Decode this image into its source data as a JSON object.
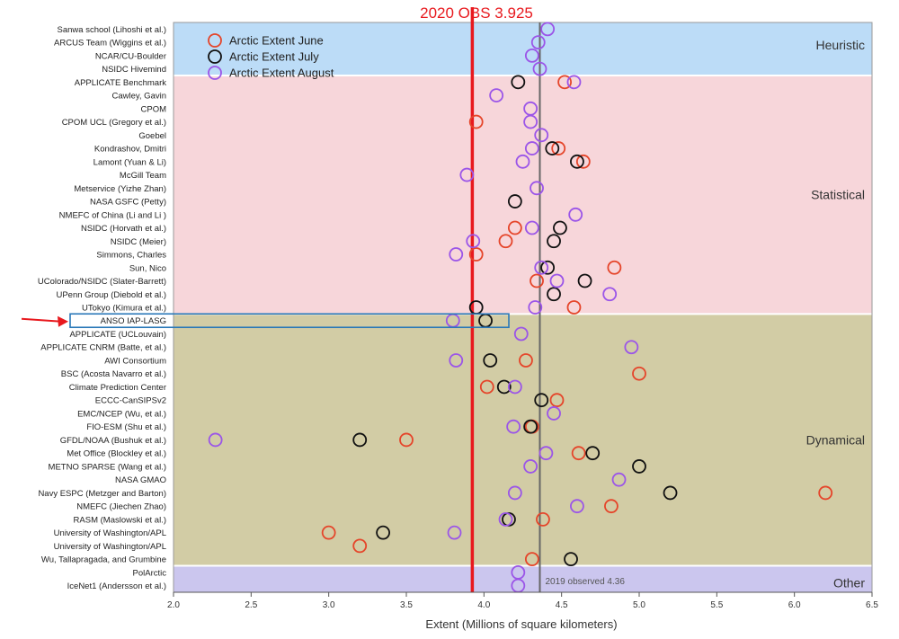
{
  "chart_data": {
    "type": "scatter",
    "title": "2020 OBS 3.925",
    "xlabel": "Extent (Millions of square kilometers)",
    "ylabel": "",
    "xlim": [
      2.0,
      6.5
    ],
    "xticks": [
      "2.0",
      "2.5",
      "3.0",
      "3.5",
      "4.0",
      "4.5",
      "5.0",
      "5.5",
      "6.0",
      "6.5"
    ],
    "grid": false,
    "legend_position": "top-left",
    "colors": {
      "june": "#e5452a",
      "july": "#111111",
      "august": "#9b55e8",
      "obs2020": "#e8191e",
      "obs2019": "#666666"
    },
    "reference_lines": [
      {
        "name": "2020 OBS",
        "value": 3.925,
        "label": "2020 OBS 3.925"
      },
      {
        "name": "2019 observed",
        "value": 4.36,
        "label": "2019 observed 4.36"
      }
    ],
    "groups": [
      {
        "name": "Heuristic",
        "from": "Sanwa school (Lihoshi et al.)",
        "to": "NSIDC Hivemind",
        "color": "#bcdcf7"
      },
      {
        "name": "Statistical",
        "from": "APPLICATE Benchmark",
        "to": "UTokyo (Kimura et al.)",
        "color": "#f7d6da"
      },
      {
        "name": "Dynamical",
        "from": "ANSO IAP-LASG",
        "to": "Wu, Tallapragada, and Grumbine",
        "color": "#d2cca5"
      },
      {
        "name": "Other",
        "from": "PolArctic",
        "to": "IceNet1 (Andersson et al.)",
        "color": "#cbc6ee"
      }
    ],
    "highlight": "ANSO IAP-LASG",
    "categories": [
      "Sanwa school (Lihoshi et al.)",
      "ARCUS Team (Wiggins et al.)",
      "NCAR/CU-Boulder",
      "NSIDC Hivemind",
      "APPLICATE Benchmark",
      "Cawley, Gavin",
      "CPOM",
      "CPOM UCL (Gregory et al.)",
      "Goebel",
      "Kondrashov, Dmitri",
      "Lamont (Yuan & Li)",
      "McGill Team",
      "Metservice (Yizhe Zhan)",
      "NASA GSFC (Petty)",
      "NMEFC of China (Li and Li )",
      "NSIDC (Horvath et al.)",
      "NSIDC (Meier)",
      "Simmons, Charles",
      "Sun, Nico",
      "UColorado/NSIDC (Slater-Barrett)",
      "UPenn Group (Diebold et al.)",
      "UTokyo (Kimura et al.)",
      "ANSO IAP-LASG",
      "APPLICATE (UCLouvain)",
      "APPLICATE CNRM (Batte, et al.)",
      "AWI Consortium",
      "BSC (Acosta Navarro et al.)",
      "Climate Prediction Center",
      "ECCC-CanSIPSv2",
      "EMC/NCEP (Wu, et al.)",
      "FIO-ESM (Shu et al.)",
      "GFDL/NOAA (Bushuk et al.)",
      "Met Office (Blockley et al.)",
      "METNO SPARSE (Wang et al.)",
      "NASA GMAO",
      "Navy ESPC (Metzger and Barton)",
      "NMEFC (Jiechen Zhao)",
      "RASM (Maslowski et al.)",
      "University of Washington/APL",
      "University of Washington/APL",
      "Wu, Tallapragada, and Grumbine",
      "PolArctic",
      "IceNet1 (Andersson et al.)"
    ],
    "series": [
      {
        "name": "Arctic Extent June",
        "color": "#e5452a",
        "values": [
          null,
          null,
          null,
          null,
          4.52,
          null,
          null,
          3.95,
          null,
          4.48,
          4.64,
          null,
          null,
          null,
          null,
          4.2,
          4.14,
          3.95,
          4.84,
          4.34,
          null,
          4.58,
          null,
          null,
          null,
          4.27,
          5.0,
          4.02,
          4.47,
          null,
          4.31,
          3.5,
          4.61,
          null,
          null,
          6.2,
          4.82,
          4.38,
          3.0,
          3.2,
          4.31,
          null,
          null
        ]
      },
      {
        "name": "Arctic Extent July",
        "color": "#111111",
        "values": [
          null,
          null,
          null,
          null,
          4.22,
          null,
          null,
          null,
          null,
          4.44,
          4.6,
          null,
          null,
          4.2,
          null,
          4.49,
          4.45,
          null,
          4.41,
          4.65,
          4.45,
          3.95,
          4.01,
          null,
          null,
          4.04,
          null,
          4.13,
          4.37,
          null,
          4.3,
          3.2,
          4.7,
          5.0,
          null,
          5.2,
          null,
          4.16,
          3.35,
          null,
          4.56,
          null,
          null
        ]
      },
      {
        "name": "Arctic Extent August",
        "color": "#9b55e8",
        "values": [
          4.41,
          4.35,
          4.31,
          4.36,
          4.58,
          4.08,
          4.3,
          4.3,
          4.37,
          4.31,
          4.25,
          3.89,
          4.34,
          null,
          4.59,
          4.31,
          3.93,
          3.82,
          4.37,
          4.47,
          4.81,
          4.33,
          3.8,
          4.24,
          4.95,
          3.82,
          null,
          4.2,
          null,
          4.45,
          4.19,
          2.27,
          4.4,
          4.3,
          4.87,
          4.2,
          4.6,
          4.14,
          3.81,
          null,
          null,
          4.22,
          4.22
        ]
      }
    ]
  }
}
